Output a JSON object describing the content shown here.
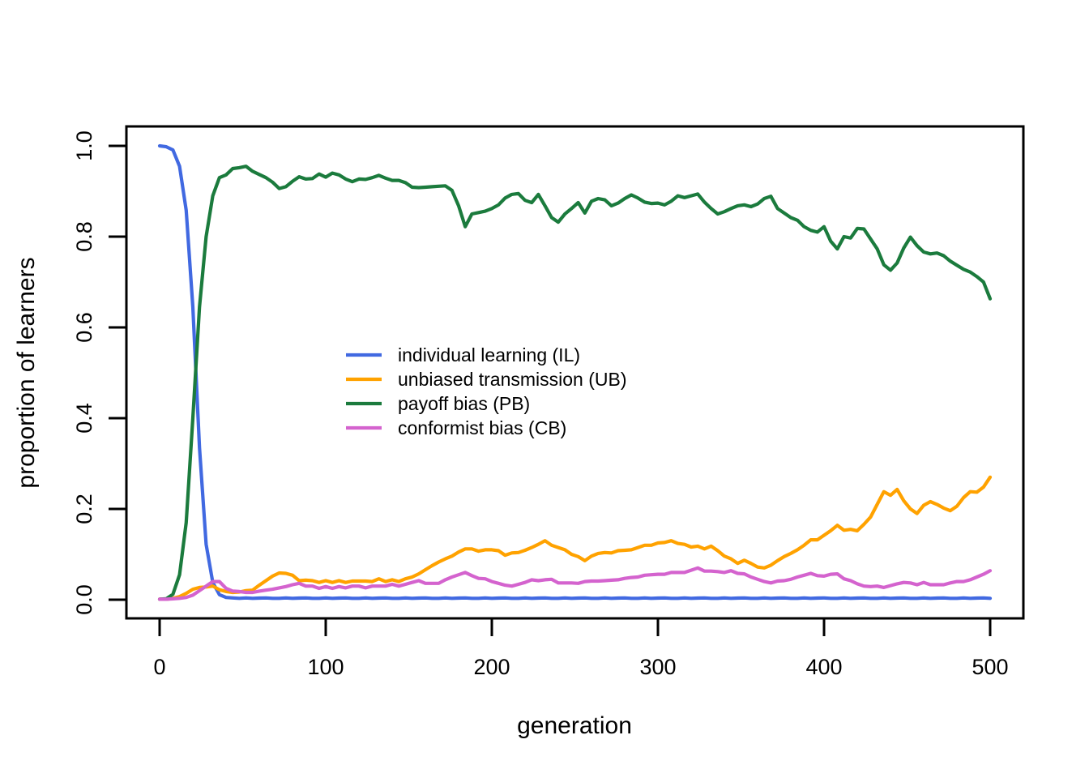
{
  "figure": {
    "background": "#ffffff",
    "frame_color": "#000000"
  },
  "chart_data": {
    "type": "line",
    "title": "",
    "xlabel": "generation",
    "ylabel": "proportion of learners",
    "xlim": [
      0,
      500
    ],
    "ylim": [
      0.0,
      1.0
    ],
    "grid": false,
    "legend_position": "inside-middle-left",
    "x_tick_labels": [
      "0",
      "100",
      "200",
      "300",
      "400",
      "500"
    ],
    "x_tick_values": [
      0,
      100,
      200,
      300,
      400,
      500
    ],
    "y_tick_labels": [
      "0.0",
      "0.2",
      "0.4",
      "0.6",
      "0.8",
      "1.0"
    ],
    "y_tick_values": [
      0.0,
      0.2,
      0.4,
      0.6,
      0.8,
      1.0
    ],
    "x_start": 0,
    "x_step": 4,
    "series": [
      {
        "name": "IL",
        "label": "individual learning (IL)",
        "color": "#4169E1",
        "values": [
          1.0,
          0.998,
          0.991,
          0.955,
          0.858,
          0.645,
          0.335,
          0.122,
          0.038,
          0.011,
          0.005,
          0.004,
          0.003,
          0.004,
          0.003,
          0.0035,
          0.004,
          0.003,
          0.003,
          0.004,
          0.003,
          0.0035,
          0.004,
          0.003,
          0.003,
          0.004,
          0.003,
          0.0035,
          0.004,
          0.003,
          0.003,
          0.004,
          0.003,
          0.0035,
          0.004,
          0.003,
          0.003,
          0.004,
          0.003,
          0.0035,
          0.004,
          0.003,
          0.003,
          0.004,
          0.003,
          0.0035,
          0.004,
          0.003,
          0.003,
          0.004,
          0.003,
          0.0035,
          0.004,
          0.003,
          0.003,
          0.004,
          0.003,
          0.0035,
          0.004,
          0.003,
          0.003,
          0.004,
          0.003,
          0.0035,
          0.004,
          0.003,
          0.003,
          0.004,
          0.003,
          0.0035,
          0.004,
          0.003,
          0.003,
          0.004,
          0.003,
          0.0035,
          0.004,
          0.003,
          0.003,
          0.004,
          0.003,
          0.0035,
          0.004,
          0.003,
          0.003,
          0.004,
          0.003,
          0.0035,
          0.004,
          0.003,
          0.003,
          0.004,
          0.003,
          0.0035,
          0.004,
          0.003,
          0.003,
          0.004,
          0.003,
          0.0035,
          0.004,
          0.003,
          0.003,
          0.004,
          0.003,
          0.0035,
          0.004,
          0.003,
          0.003,
          0.004,
          0.003,
          0.0035,
          0.004,
          0.003,
          0.003,
          0.004,
          0.003,
          0.0035,
          0.004,
          0.003,
          0.003,
          0.004,
          0.003,
          0.0035,
          0.004,
          0.003
        ]
      },
      {
        "name": "UB",
        "label": "unbiased transmission (UB)",
        "color": "#FFA200",
        "values": [
          0.001,
          0.001,
          0.003,
          0.007,
          0.014,
          0.023,
          0.027,
          0.028,
          0.03,
          0.022,
          0.018,
          0.016,
          0.017,
          0.02,
          0.021,
          0.032,
          0.042,
          0.052,
          0.059,
          0.058,
          0.054,
          0.042,
          0.043,
          0.042,
          0.038,
          0.042,
          0.038,
          0.042,
          0.038,
          0.041,
          0.041,
          0.041,
          0.04,
          0.046,
          0.04,
          0.044,
          0.04,
          0.046,
          0.05,
          0.057,
          0.066,
          0.075,
          0.083,
          0.09,
          0.096,
          0.105,
          0.112,
          0.112,
          0.107,
          0.11,
          0.11,
          0.108,
          0.098,
          0.103,
          0.104,
          0.109,
          0.115,
          0.122,
          0.13,
          0.12,
          0.115,
          0.11,
          0.1,
          0.095,
          0.086,
          0.096,
          0.102,
          0.104,
          0.103,
          0.108,
          0.109,
          0.11,
          0.115,
          0.12,
          0.12,
          0.125,
          0.126,
          0.13,
          0.124,
          0.122,
          0.116,
          0.118,
          0.112,
          0.118,
          0.108,
          0.096,
          0.09,
          0.08,
          0.087,
          0.08,
          0.072,
          0.07,
          0.076,
          0.086,
          0.095,
          0.102,
          0.11,
          0.12,
          0.132,
          0.132,
          0.142,
          0.152,
          0.164,
          0.153,
          0.155,
          0.152,
          0.166,
          0.182,
          0.21,
          0.238,
          0.23,
          0.243,
          0.218,
          0.2,
          0.19,
          0.208,
          0.216,
          0.21,
          0.202,
          0.196,
          0.206,
          0.225,
          0.238,
          0.237,
          0.248,
          0.27
        ]
      },
      {
        "name": "PB",
        "label": "payoff bias (PB)",
        "color": "#1B7B3D",
        "values": [
          0.001,
          0.002,
          0.012,
          0.055,
          0.17,
          0.4,
          0.645,
          0.8,
          0.89,
          0.93,
          0.936,
          0.95,
          0.952,
          0.955,
          0.944,
          0.937,
          0.93,
          0.92,
          0.906,
          0.91,
          0.922,
          0.932,
          0.927,
          0.928,
          0.938,
          0.931,
          0.94,
          0.936,
          0.927,
          0.921,
          0.927,
          0.926,
          0.93,
          0.935,
          0.929,
          0.924,
          0.924,
          0.919,
          0.909,
          0.908,
          0.909,
          0.91,
          0.911,
          0.912,
          0.902,
          0.868,
          0.822,
          0.85,
          0.853,
          0.856,
          0.862,
          0.87,
          0.885,
          0.893,
          0.895,
          0.88,
          0.875,
          0.893,
          0.868,
          0.842,
          0.832,
          0.85,
          0.862,
          0.875,
          0.852,
          0.878,
          0.884,
          0.881,
          0.868,
          0.874,
          0.884,
          0.892,
          0.885,
          0.876,
          0.873,
          0.874,
          0.87,
          0.878,
          0.89,
          0.886,
          0.89,
          0.894,
          0.876,
          0.862,
          0.85,
          0.855,
          0.862,
          0.868,
          0.87,
          0.866,
          0.872,
          0.884,
          0.889,
          0.862,
          0.852,
          0.842,
          0.836,
          0.822,
          0.814,
          0.81,
          0.822,
          0.79,
          0.773,
          0.8,
          0.797,
          0.818,
          0.817,
          0.795,
          0.773,
          0.738,
          0.726,
          0.742,
          0.775,
          0.799,
          0.78,
          0.766,
          0.762,
          0.764,
          0.758,
          0.746,
          0.737,
          0.728,
          0.722,
          0.712,
          0.7,
          0.663
        ]
      },
      {
        "name": "CB",
        "label": "conformist bias (CB)",
        "color": "#D463CE",
        "values": [
          0.001,
          0.001,
          0.002,
          0.003,
          0.005,
          0.01,
          0.02,
          0.03,
          0.04,
          0.04,
          0.025,
          0.019,
          0.018,
          0.016,
          0.016,
          0.019,
          0.021,
          0.023,
          0.026,
          0.029,
          0.033,
          0.036,
          0.03,
          0.03,
          0.025,
          0.029,
          0.025,
          0.029,
          0.026,
          0.03,
          0.03,
          0.026,
          0.03,
          0.03,
          0.03,
          0.034,
          0.03,
          0.034,
          0.038,
          0.042,
          0.036,
          0.036,
          0.036,
          0.044,
          0.05,
          0.055,
          0.06,
          0.053,
          0.047,
          0.046,
          0.04,
          0.036,
          0.032,
          0.03,
          0.034,
          0.038,
          0.044,
          0.042,
          0.044,
          0.045,
          0.037,
          0.037,
          0.037,
          0.036,
          0.04,
          0.041,
          0.041,
          0.042,
          0.043,
          0.044,
          0.047,
          0.049,
          0.05,
          0.054,
          0.055,
          0.056,
          0.056,
          0.06,
          0.06,
          0.06,
          0.065,
          0.07,
          0.063,
          0.063,
          0.062,
          0.06,
          0.064,
          0.058,
          0.057,
          0.05,
          0.045,
          0.04,
          0.037,
          0.041,
          0.042,
          0.045,
          0.05,
          0.054,
          0.058,
          0.053,
          0.052,
          0.056,
          0.057,
          0.046,
          0.042,
          0.035,
          0.03,
          0.029,
          0.03,
          0.027,
          0.031,
          0.035,
          0.038,
          0.037,
          0.033,
          0.038,
          0.033,
          0.033,
          0.033,
          0.037,
          0.04,
          0.04,
          0.044,
          0.05,
          0.056,
          0.064
        ]
      }
    ]
  }
}
